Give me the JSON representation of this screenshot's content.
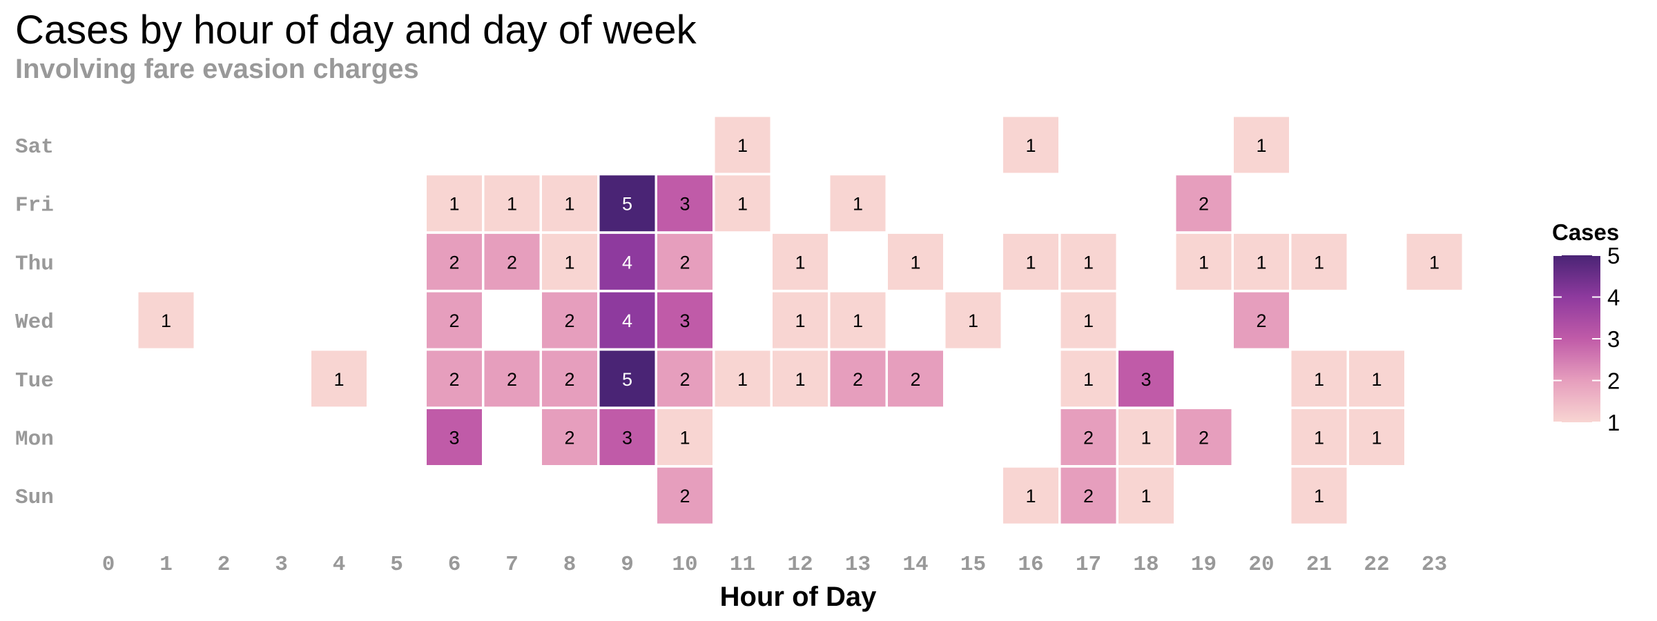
{
  "chart_data": {
    "type": "heatmap",
    "title": "Cases by hour of day and day of week",
    "subtitle": "Involving fare evasion charges",
    "xlabel": "Hour of Day",
    "ylabel": "",
    "x_categories": [
      "0",
      "1",
      "2",
      "3",
      "4",
      "5",
      "6",
      "7",
      "8",
      "9",
      "10",
      "11",
      "12",
      "13",
      "14",
      "15",
      "16",
      "17",
      "18",
      "19",
      "20",
      "21",
      "22",
      "23"
    ],
    "y_categories": [
      "Sat",
      "Fri",
      "Thu",
      "Wed",
      "Tue",
      "Mon",
      "Sun"
    ],
    "cells": [
      {
        "day": "Sat",
        "hour": 11,
        "value": 1
      },
      {
        "day": "Sat",
        "hour": 16,
        "value": 1
      },
      {
        "day": "Sat",
        "hour": 20,
        "value": 1
      },
      {
        "day": "Fri",
        "hour": 6,
        "value": 1
      },
      {
        "day": "Fri",
        "hour": 7,
        "value": 1
      },
      {
        "day": "Fri",
        "hour": 8,
        "value": 1
      },
      {
        "day": "Fri",
        "hour": 9,
        "value": 5
      },
      {
        "day": "Fri",
        "hour": 10,
        "value": 3
      },
      {
        "day": "Fri",
        "hour": 11,
        "value": 1
      },
      {
        "day": "Fri",
        "hour": 13,
        "value": 1
      },
      {
        "day": "Fri",
        "hour": 19,
        "value": 2
      },
      {
        "day": "Thu",
        "hour": 6,
        "value": 2
      },
      {
        "day": "Thu",
        "hour": 7,
        "value": 2
      },
      {
        "day": "Thu",
        "hour": 8,
        "value": 1
      },
      {
        "day": "Thu",
        "hour": 9,
        "value": 4
      },
      {
        "day": "Thu",
        "hour": 10,
        "value": 2
      },
      {
        "day": "Thu",
        "hour": 12,
        "value": 1
      },
      {
        "day": "Thu",
        "hour": 14,
        "value": 1
      },
      {
        "day": "Thu",
        "hour": 16,
        "value": 1
      },
      {
        "day": "Thu",
        "hour": 17,
        "value": 1
      },
      {
        "day": "Thu",
        "hour": 19,
        "value": 1
      },
      {
        "day": "Thu",
        "hour": 20,
        "value": 1
      },
      {
        "day": "Thu",
        "hour": 21,
        "value": 1
      },
      {
        "day": "Thu",
        "hour": 23,
        "value": 1
      },
      {
        "day": "Wed",
        "hour": 1,
        "value": 1
      },
      {
        "day": "Wed",
        "hour": 6,
        "value": 2
      },
      {
        "day": "Wed",
        "hour": 8,
        "value": 2
      },
      {
        "day": "Wed",
        "hour": 9,
        "value": 4
      },
      {
        "day": "Wed",
        "hour": 10,
        "value": 3
      },
      {
        "day": "Wed",
        "hour": 12,
        "value": 1
      },
      {
        "day": "Wed",
        "hour": 13,
        "value": 1
      },
      {
        "day": "Wed",
        "hour": 15,
        "value": 1
      },
      {
        "day": "Wed",
        "hour": 17,
        "value": 1
      },
      {
        "day": "Wed",
        "hour": 20,
        "value": 2
      },
      {
        "day": "Tue",
        "hour": 4,
        "value": 1
      },
      {
        "day": "Tue",
        "hour": 6,
        "value": 2
      },
      {
        "day": "Tue",
        "hour": 7,
        "value": 2
      },
      {
        "day": "Tue",
        "hour": 8,
        "value": 2
      },
      {
        "day": "Tue",
        "hour": 9,
        "value": 5
      },
      {
        "day": "Tue",
        "hour": 10,
        "value": 2
      },
      {
        "day": "Tue",
        "hour": 11,
        "value": 1
      },
      {
        "day": "Tue",
        "hour": 12,
        "value": 1
      },
      {
        "day": "Tue",
        "hour": 13,
        "value": 2
      },
      {
        "day": "Tue",
        "hour": 14,
        "value": 2
      },
      {
        "day": "Tue",
        "hour": 17,
        "value": 1
      },
      {
        "day": "Tue",
        "hour": 18,
        "value": 3
      },
      {
        "day": "Tue",
        "hour": 21,
        "value": 1
      },
      {
        "day": "Tue",
        "hour": 22,
        "value": 1
      },
      {
        "day": "Mon",
        "hour": 6,
        "value": 3
      },
      {
        "day": "Mon",
        "hour": 8,
        "value": 2
      },
      {
        "day": "Mon",
        "hour": 9,
        "value": 3
      },
      {
        "day": "Mon",
        "hour": 10,
        "value": 1
      },
      {
        "day": "Mon",
        "hour": 17,
        "value": 2
      },
      {
        "day": "Mon",
        "hour": 18,
        "value": 1
      },
      {
        "day": "Mon",
        "hour": 19,
        "value": 2
      },
      {
        "day": "Mon",
        "hour": 21,
        "value": 1
      },
      {
        "day": "Mon",
        "hour": 22,
        "value": 1
      },
      {
        "day": "Sun",
        "hour": 10,
        "value": 2
      },
      {
        "day": "Sun",
        "hour": 16,
        "value": 1
      },
      {
        "day": "Sun",
        "hour": 17,
        "value": 2
      },
      {
        "day": "Sun",
        "hour": 18,
        "value": 1
      },
      {
        "day": "Sun",
        "hour": 21,
        "value": 1
      }
    ],
    "color_scale": {
      "min": 1,
      "max": 5,
      "colors": {
        "1": "#f8d5d2",
        "2": "#e69ebd",
        "3": "#c05ba8",
        "4": "#8e3a9e",
        "5": "#4a2475"
      }
    },
    "label_colors": {
      "dark": "#000000",
      "light": "#ffffff"
    },
    "legend": {
      "title": "Cases",
      "ticks": [
        "1",
        "2",
        "3",
        "4",
        "5"
      ],
      "placement": "right"
    },
    "grid": false
  }
}
